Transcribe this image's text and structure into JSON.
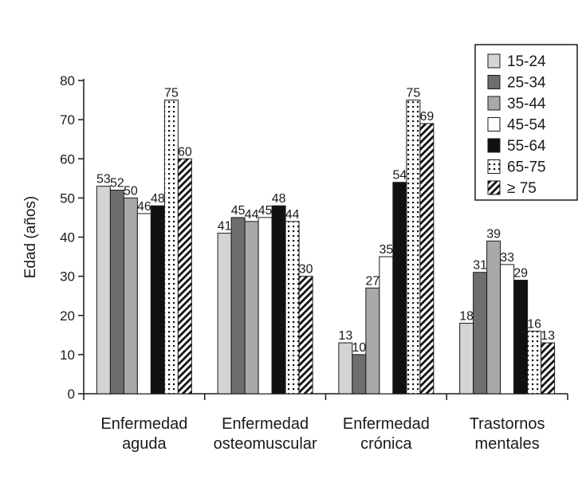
{
  "chart_data": {
    "type": "bar",
    "ylabel": "Edad (años)",
    "ylim": [
      0,
      80
    ],
    "yticks": [
      0,
      10,
      20,
      30,
      40,
      50,
      60,
      70,
      80
    ],
    "grid": false,
    "legend_position": "top-right",
    "categories": [
      [
        "Enfermedad",
        "aguda"
      ],
      [
        "Enfermedad",
        "osteomuscular"
      ],
      [
        "Enfermedad",
        "crónica"
      ],
      [
        "Trastornos",
        "mentales"
      ]
    ],
    "series": [
      {
        "name": "15-24",
        "fill": "light-gray",
        "values": [
          53,
          41,
          13,
          18
        ]
      },
      {
        "name": "25-34",
        "fill": "dark-gray",
        "values": [
          52,
          45,
          10,
          31
        ]
      },
      {
        "name": "35-44",
        "fill": "medium-gray",
        "values": [
          50,
          44,
          27,
          39
        ]
      },
      {
        "name": "45-54",
        "fill": "white",
        "values": [
          46,
          45,
          35,
          33
        ]
      },
      {
        "name": "55-64",
        "fill": "black",
        "values": [
          48,
          48,
          54,
          29
        ]
      },
      {
        "name": "65-75",
        "fill": "dotted",
        "values": [
          75,
          44,
          75,
          16
        ]
      },
      {
        "name": "≥ 75",
        "fill": "diagonal-hatch",
        "values": [
          60,
          30,
          69,
          13
        ]
      }
    ],
    "colors": {
      "light-gray": "#d4d4d4",
      "dark-gray": "#6e6e6e",
      "medium-gray": "#a9a9a9",
      "white": "#ffffff",
      "black": "#111111",
      "stroke": "#1a1a1a"
    }
  }
}
